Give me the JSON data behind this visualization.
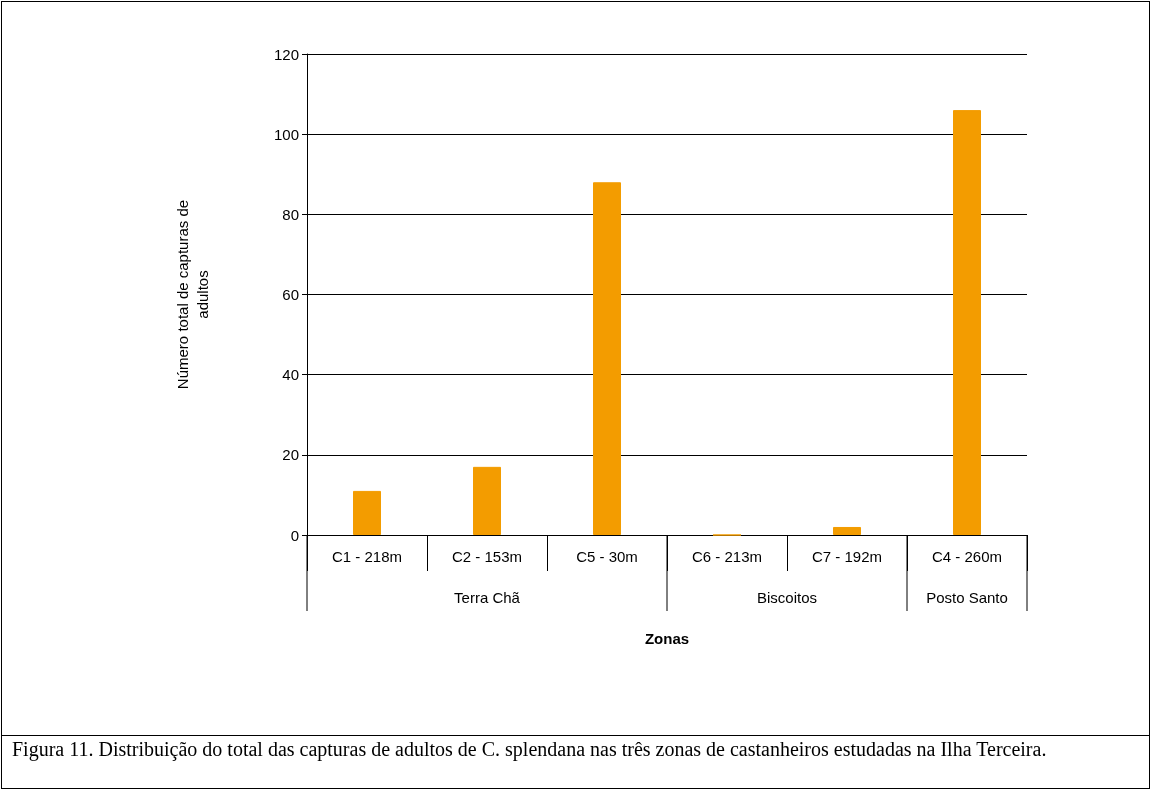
{
  "chart_data": {
    "type": "bar",
    "xlabel": "Zonas",
    "ylabel": "Número total de capturas de\nadultos",
    "categories": [
      "C1 - 218m",
      "C2 - 153m",
      "C5 - 30m",
      "C6 - 213m",
      "C7 - 192m",
      "C4 - 260m"
    ],
    "values": [
      11,
      17,
      88,
      0,
      2,
      106
    ],
    "color": "#f39c00",
    "ylim": [
      0,
      120
    ],
    "yticks": [
      0,
      20,
      40,
      60,
      80,
      100,
      120
    ],
    "grid": "y",
    "annotations": [
      "Terra Chã",
      "Biscoitos",
      "Posto Santo",
      "Figura 11. Distribuição do total das capturas de adultos de C. splendana nas três zonas de castanheiros estudadas na Ilha Terceira."
    ]
  }
}
